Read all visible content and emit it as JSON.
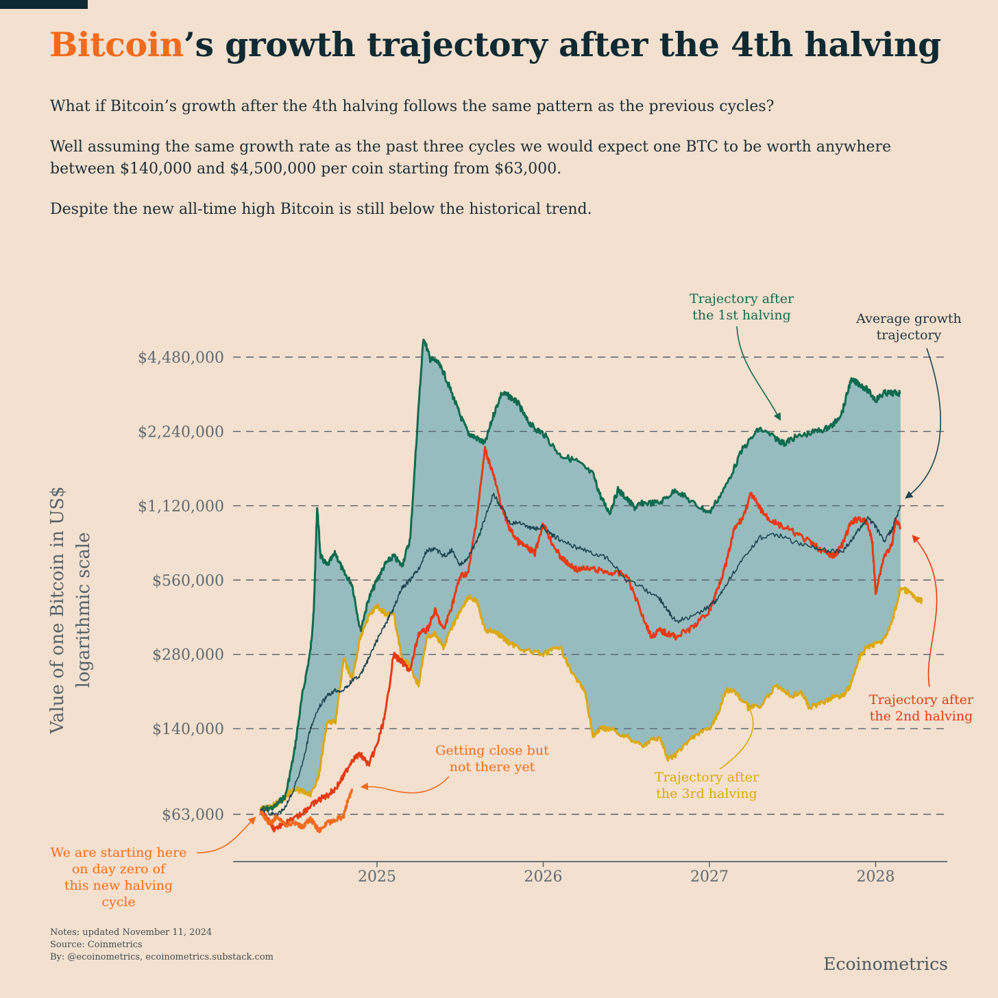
{
  "header": {
    "title_accent": "Bitcoin",
    "title_rest": "’s growth trajectory after the 4th halving",
    "paragraphs": [
      "What if Bitcoin’s growth after the 4th halving follows the same pattern as the previous cycles?",
      "Well assuming the same growth rate as the past three cycles we would expect one BTC to be worth anywhere between $140,000 and $4,500,000 per coin starting from $63,000.",
      "Despite the new all-time high Bitcoin is still below the historical trend."
    ]
  },
  "footer": {
    "notes": "Notes: updated November 11, 2024",
    "source": "Source: Coinmetrics",
    "by": "By: @ecoinometrics, ecoinometrics.substack.com",
    "brand": "Ecoinometrics"
  },
  "colors": {
    "background": "#f3e0cf",
    "first_halving": "#0f6b50",
    "second_halving": "#e53a14",
    "third_halving": "#dba80f",
    "average": "#1b4550",
    "current": "#f26b1d",
    "band_fill": "#97bcbf",
    "grid": "#56626a"
  },
  "chart_data": {
    "type": "line",
    "title": "",
    "xlabel": "",
    "ylabel": "Value of one Bitcoin in US$ logarithmic scale",
    "yscale": "log",
    "yticks": [
      63000,
      140000,
      280000,
      560000,
      1120000,
      2240000,
      4480000
    ],
    "ytick_labels": [
      "$63,000",
      "$140,000",
      "$280,000",
      "$560,000",
      "$1,120,000",
      "$2,240,000",
      "$4,480,000"
    ],
    "ylim": [
      40000,
      6000000
    ],
    "xticks": [
      2025,
      2026,
      2027,
      2028
    ],
    "xtick_labels": [
      "2025",
      "2026",
      "2027",
      "2028"
    ],
    "xlim": [
      2024.1,
      2028.5
    ],
    "grid": "horizontal dashed",
    "band": {
      "between": [
        "Trajectory after the 1st halving",
        "Trajectory after the 3rd halving"
      ]
    },
    "series": [
      {
        "name": "Trajectory after the 1st halving",
        "x": [
          2024.3,
          2024.38,
          2024.45,
          2024.5,
          2024.55,
          2024.6,
          2024.62,
          2024.64,
          2024.66,
          2024.7,
          2024.75,
          2024.8,
          2024.85,
          2024.9,
          2024.95,
          2025.0,
          2025.05,
          2025.1,
          2025.15,
          2025.2,
          2025.25,
          2025.28,
          2025.32,
          2025.36,
          2025.4,
          2025.45,
          2025.5,
          2025.55,
          2025.6,
          2025.65,
          2025.7,
          2025.75,
          2025.8,
          2025.85,
          2025.9,
          2025.95,
          2026.0,
          2026.1,
          2026.2,
          2026.3,
          2026.35,
          2026.4,
          2026.45,
          2026.5,
          2026.55,
          2026.6,
          2026.7,
          2026.8,
          2026.9,
          2027.0,
          2027.1,
          2027.2,
          2027.3,
          2027.4,
          2027.45,
          2027.5,
          2027.6,
          2027.7,
          2027.75,
          2027.8,
          2027.85,
          2027.9,
          2027.95,
          2028.0,
          2028.05,
          2028.1,
          2028.15
        ],
        "values": [
          66000,
          67000,
          75000,
          110000,
          190000,
          290000,
          420000,
          1120000,
          700000,
          640000,
          720000,
          600000,
          540000,
          350000,
          470000,
          560000,
          650000,
          700000,
          640000,
          820000,
          2800000,
          5400000,
          4400000,
          4300000,
          3900000,
          3200000,
          2600000,
          2200000,
          2100000,
          2000000,
          2600000,
          3200000,
          3100000,
          2900000,
          2500000,
          2300000,
          2200000,
          1800000,
          1700000,
          1500000,
          1200000,
          1050000,
          1300000,
          1200000,
          1100000,
          1150000,
          1150000,
          1300000,
          1150000,
          1050000,
          1350000,
          1900000,
          2300000,
          2100000,
          2000000,
          2100000,
          2200000,
          2300000,
          2400000,
          2700000,
          3600000,
          3500000,
          3300000,
          3000000,
          3200000,
          3200000,
          3200000
        ]
      },
      {
        "name": "Trajectory after the 2nd halving",
        "x": [
          2024.3,
          2024.33,
          2024.38,
          2024.45,
          2024.5,
          2024.55,
          2024.6,
          2024.65,
          2024.7,
          2024.75,
          2024.8,
          2024.85,
          2024.9,
          2024.95,
          2025.0,
          2025.05,
          2025.1,
          2025.15,
          2025.2,
          2025.25,
          2025.3,
          2025.35,
          2025.4,
          2025.45,
          2025.5,
          2025.55,
          2025.6,
          2025.65,
          2025.7,
          2025.75,
          2025.8,
          2025.85,
          2025.9,
          2025.95,
          2026.0,
          2026.05,
          2026.1,
          2026.15,
          2026.2,
          2026.3,
          2026.4,
          2026.5,
          2026.6,
          2026.65,
          2026.7,
          2026.75,
          2026.8,
          2026.9,
          2027.0,
          2027.05,
          2027.1,
          2027.15,
          2027.2,
          2027.25,
          2027.3,
          2027.35,
          2027.4,
          2027.5,
          2027.6,
          2027.7,
          2027.75,
          2027.8,
          2027.85,
          2027.9,
          2027.95,
          2027.98,
          2028.0,
          2028.05,
          2028.1,
          2028.12,
          2028.15
        ],
        "values": [
          66000,
          62000,
          55000,
          58000,
          60000,
          64000,
          68000,
          72000,
          75000,
          80000,
          90000,
          105000,
          110000,
          100000,
          120000,
          160000,
          280000,
          260000,
          240000,
          340000,
          350000,
          420000,
          350000,
          440000,
          580000,
          600000,
          1000000,
          1900000,
          1500000,
          1100000,
          900000,
          800000,
          760000,
          720000,
          950000,
          800000,
          700000,
          650000,
          620000,
          620000,
          600000,
          590000,
          400000,
          330000,
          350000,
          340000,
          330000,
          360000,
          420000,
          520000,
          650000,
          900000,
          1000000,
          1250000,
          1100000,
          1000000,
          950000,
          880000,
          800000,
          720000,
          700000,
          780000,
          950000,
          1000000,
          950000,
          800000,
          500000,
          700000,
          780000,
          1000000,
          900000
        ]
      },
      {
        "name": "Trajectory after the 3rd halving",
        "x": [
          2024.3,
          2024.35,
          2024.4,
          2024.45,
          2024.5,
          2024.55,
          2024.6,
          2024.65,
          2024.7,
          2024.75,
          2024.8,
          2024.85,
          2024.9,
          2024.95,
          2025.0,
          2025.05,
          2025.1,
          2025.15,
          2025.2,
          2025.25,
          2025.3,
          2025.35,
          2025.4,
          2025.45,
          2025.5,
          2025.55,
          2025.6,
          2025.65,
          2025.7,
          2025.75,
          2025.8,
          2025.9,
          2026.0,
          2026.1,
          2026.2,
          2026.25,
          2026.3,
          2026.35,
          2026.4,
          2026.5,
          2026.6,
          2026.7,
          2026.75,
          2026.8,
          2026.9,
          2027.0,
          2027.05,
          2027.1,
          2027.15,
          2027.2,
          2027.3,
          2027.4,
          2027.5,
          2027.55,
          2027.6,
          2027.7,
          2027.75,
          2027.8,
          2027.85,
          2027.9,
          2027.95,
          2028.0,
          2028.05,
          2028.1,
          2028.15,
          2028.2,
          2028.25,
          2028.28
        ],
        "values": [
          66000,
          67000,
          70000,
          74000,
          80000,
          78000,
          76000,
          90000,
          150000,
          150000,
          270000,
          220000,
          330000,
          400000,
          440000,
          410000,
          410000,
          270000,
          250000,
          210000,
          330000,
          340000,
          300000,
          360000,
          420000,
          480000,
          460000,
          350000,
          350000,
          330000,
          310000,
          290000,
          280000,
          300000,
          220000,
          200000,
          130000,
          140000,
          140000,
          130000,
          120000,
          130000,
          105000,
          110000,
          130000,
          140000,
          160000,
          200000,
          200000,
          180000,
          170000,
          210000,
          190000,
          200000,
          170000,
          180000,
          190000,
          190000,
          210000,
          270000,
          300000,
          310000,
          320000,
          380000,
          520000,
          500000,
          470000,
          460000
        ]
      },
      {
        "name": "Average growth trajectory",
        "x": [
          2024.3,
          2024.35,
          2024.4,
          2024.45,
          2024.5,
          2024.55,
          2024.6,
          2024.65,
          2024.7,
          2024.75,
          2024.8,
          2024.85,
          2024.9,
          2024.95,
          2025.0,
          2025.05,
          2025.1,
          2025.15,
          2025.2,
          2025.25,
          2025.3,
          2025.35,
          2025.4,
          2025.45,
          2025.5,
          2025.55,
          2025.6,
          2025.65,
          2025.7,
          2025.75,
          2025.8,
          2025.85,
          2025.9,
          2025.95,
          2026.0,
          2026.05,
          2026.1,
          2026.2,
          2026.3,
          2026.4,
          2026.5,
          2026.6,
          2026.7,
          2026.75,
          2026.8,
          2026.9,
          2027.0,
          2027.05,
          2027.1,
          2027.2,
          2027.3,
          2027.4,
          2027.5,
          2027.6,
          2027.7,
          2027.8,
          2027.85,
          2027.9,
          2027.95,
          2028.0,
          2028.05,
          2028.1,
          2028.15
        ],
        "values": [
          66000,
          64000,
          62000,
          68000,
          80000,
          100000,
          140000,
          170000,
          190000,
          200000,
          200000,
          220000,
          230000,
          270000,
          320000,
          370000,
          430000,
          520000,
          560000,
          620000,
          740000,
          750000,
          700000,
          740000,
          640000,
          700000,
          800000,
          1000000,
          1250000,
          1100000,
          950000,
          960000,
          920000,
          900000,
          920000,
          850000,
          820000,
          760000,
          720000,
          680000,
          560000,
          520000,
          470000,
          420000,
          380000,
          400000,
          440000,
          470000,
          540000,
          680000,
          830000,
          860000,
          800000,
          770000,
          740000,
          730000,
          800000,
          900000,
          1000000,
          920000,
          800000,
          900000,
          1120000
        ]
      },
      {
        "name": "We are starting here on day zero of this new halving cycle",
        "x": [
          2024.3,
          2024.33,
          2024.36,
          2024.4,
          2024.45,
          2024.5,
          2024.55,
          2024.6,
          2024.62,
          2024.65,
          2024.7,
          2024.75,
          2024.8,
          2024.82,
          2024.85
        ],
        "values": [
          65000,
          60000,
          58000,
          62000,
          57000,
          58000,
          56000,
          60000,
          58000,
          54000,
          58000,
          60000,
          62000,
          70000,
          80000
        ]
      }
    ],
    "annotations": [
      "Trajectory after the 1st halving",
      "Average growth trajectory",
      "Trajectory after the 2nd halving",
      "Trajectory after the 3rd halving",
      "Getting close but not there yet",
      "We are starting here on day zero of this new halving cycle"
    ]
  },
  "chart_text": {
    "ylabel_line1": "Value of one Bitcoin in US$",
    "ylabel_line2": "logarithmic scale",
    "ann_first_1": "Trajectory after",
    "ann_first_2": "the 1st halving",
    "ann_avg_1": "Average growth",
    "ann_avg_2": "trajectory",
    "ann_second_1": "Trajectory after",
    "ann_second_2": "the 2nd halving",
    "ann_third_1": "Trajectory after",
    "ann_third_2": "the 3rd halving",
    "ann_close_1": "Getting close but",
    "ann_close_2": "not there yet",
    "ann_start_1": "We are starting here",
    "ann_start_2": "on day zero of",
    "ann_start_3": "this new halving",
    "ann_start_4": "cycle"
  }
}
